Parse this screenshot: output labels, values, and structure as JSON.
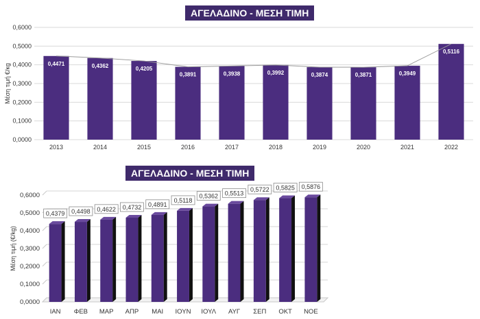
{
  "chart_data": [
    {
      "type": "bar",
      "title": "ΑΓΕΛΑΔΙΝΟ - ΜΕΣΗ ΤΙΜΗ",
      "ylabel": "Μέση τιμή €/κg",
      "xlabel": "",
      "categories": [
        "2013",
        "2014",
        "2015",
        "2016",
        "2017",
        "2018",
        "2019",
        "2020",
        "2021",
        "2022"
      ],
      "values": [
        0.4471,
        0.4362,
        0.4205,
        0.3891,
        0.3938,
        0.3992,
        0.3874,
        0.3871,
        0.3949,
        0.5116
      ],
      "value_labels": [
        "0,4471",
        "0,4362",
        "0,4205",
        "0,3891",
        "0,3938",
        "0,3992",
        "0,3874",
        "0,3871",
        "0,3949",
        "0,5116"
      ],
      "yticks": [
        "0,0000",
        "0,1000",
        "0,2000",
        "0,3000",
        "0,4000",
        "0,5000",
        "0,6000"
      ],
      "ylim": [
        0,
        0.6
      ],
      "trend_line": true,
      "grid": true,
      "bar_color": "#4b2d7f"
    },
    {
      "type": "bar",
      "title": "ΑΓΕΛΑΔΙΝΟ - ΜΕΣΗ ΤΙΜΗ",
      "ylabel": "Μέση τιμή (€/kg)",
      "xlabel": "",
      "categories": [
        "ΙΑΝ",
        "ΦΕΒ",
        "ΜΑΡ",
        "ΑΠΡ",
        "ΜΑΙ",
        "ΙΟΥΝ",
        "ΙΟΥΛ",
        "ΑΥΓ",
        "ΣΕΠ",
        "ΟΚΤ",
        "ΝΟΕ"
      ],
      "values": [
        0.4379,
        0.4498,
        0.4622,
        0.4732,
        0.4891,
        0.5118,
        0.5362,
        0.5513,
        0.5722,
        0.5825,
        0.5876
      ],
      "value_labels": [
        "0,4379",
        "0,4498",
        "0,4622",
        "0,4732",
        "0,4891",
        "0,5118",
        "0,5362",
        "0,5513",
        "0,5722",
        "0,5825",
        "0,5876"
      ],
      "yticks": [
        "0,0000",
        "0,1000",
        "0,2000",
        "0,3000",
        "0,4000",
        "0,5000",
        "0,6000"
      ],
      "ylim": [
        0,
        0.6
      ],
      "grid": true,
      "style": "3d",
      "bar_color": "#4b2d7f"
    }
  ]
}
